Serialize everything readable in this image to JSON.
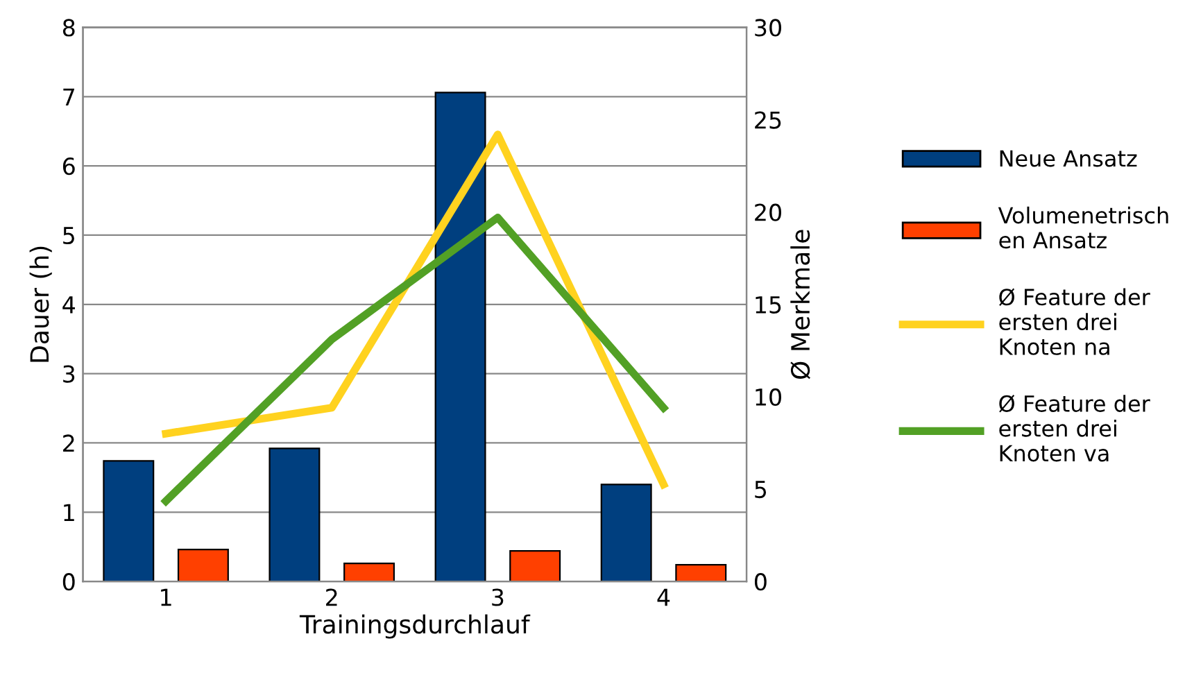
{
  "chart_data": {
    "type": "bar",
    "xlabel": "Trainingsdurchlauf",
    "ylabel": "Dauer (h)",
    "y2label": "Ø Merkmale",
    "categories": [
      "1",
      "2",
      "3",
      "4"
    ],
    "series": [
      {
        "name": "Neue Ansatz",
        "color": "#003f7f",
        "values": [
          1.74,
          1.92,
          7.06,
          1.4
        ]
      },
      {
        "name": "Volumenetrisch\nen Ansatz",
        "color": "#ff4000",
        "values": [
          0.46,
          0.26,
          0.44,
          0.24
        ]
      },
      {
        "name": "Ø Feature der\nersten drei\nKnoten na",
        "type": "line",
        "axis": "y2",
        "color": "#ffd21f",
        "values": [
          8.0,
          9.4,
          24.2,
          5.25
        ]
      },
      {
        "name": "Ø Feature der\nersten drei\nKnoten va",
        "type": "line",
        "axis": "y2",
        "color": "#52a025",
        "values": [
          4.35,
          13.1,
          19.7,
          9.4
        ]
      }
    ],
    "ylim": [
      0,
      8
    ],
    "yticks": [
      0,
      1,
      2,
      3,
      4,
      5,
      6,
      7,
      8
    ],
    "y2lim": [
      0,
      30
    ],
    "y2ticks": [
      0,
      5,
      10,
      15,
      20,
      25,
      30
    ],
    "grid": "y",
    "legend": "right"
  }
}
